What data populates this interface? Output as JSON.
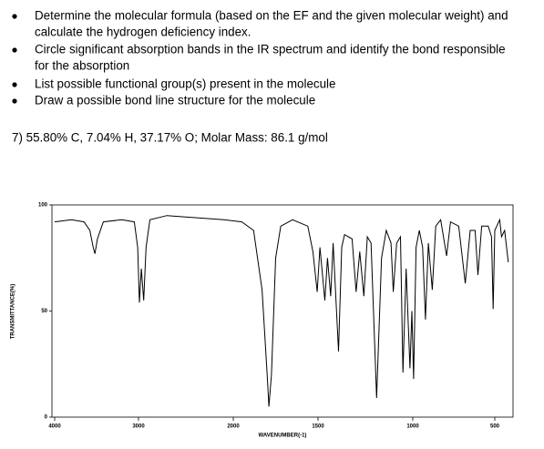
{
  "bullets": [
    [
      "Determine the molecular formula (based on the EF and the given molecular weight) and",
      "calculate the hydrogen deficiency index."
    ],
    [
      "Circle significant absorption bands in the IR spectrum and identify the bond responsible",
      "for the absorption"
    ],
    [
      "List possible functional group(s) present in the molecule"
    ],
    [
      "Draw a possible bond line structure for the molecule"
    ]
  ],
  "problem": "7)  55.80% C, 7.04% H, 37.17% O; Molar Mass: 86.1 g/mol",
  "chart_data": {
    "type": "line",
    "xlabel": "WAVENUMBER(-1)",
    "ylabel": "TRANSMITTANCE(%)",
    "xlim": [
      4000,
      418
    ],
    "ylim": [
      0,
      100
    ],
    "xticks": [
      4000,
      3000,
      2000,
      1500,
      1000,
      500
    ],
    "yticks": [
      0,
      50,
      100
    ],
    "color": "#000000",
    "x": [
      4000,
      3800,
      3650,
      3580,
      3540,
      3520,
      3490,
      3420,
      3200,
      3050,
      3010,
      2990,
      2970,
      2945,
      2920,
      2880,
      2700,
      2400,
      2100,
      1950,
      1880,
      1830,
      1800,
      1790,
      1775,
      1750,
      1720,
      1650,
      1560,
      1530,
      1505,
      1490,
      1464,
      1450,
      1433,
      1420,
      1392,
      1375,
      1360,
      1320,
      1299,
      1280,
      1258,
      1240,
      1220,
      1191,
      1165,
      1140,
      1115,
      1103,
      1085,
      1065,
      1052,
      1035,
      1015,
      1005,
      995,
      980,
      960,
      940,
      923,
      905,
      881,
      860,
      830,
      794,
      770,
      720,
      680,
      650,
      620,
      603,
      580,
      540,
      520,
      510,
      500,
      470,
      459,
      440,
      418
    ],
    "values": [
      92,
      93,
      92,
      88,
      80,
      77,
      84,
      92,
      93,
      92,
      80,
      54,
      70,
      55,
      80,
      93,
      95,
      94,
      93,
      92,
      88,
      60,
      20,
      5,
      20,
      75,
      90,
      93,
      90,
      78,
      59,
      80,
      55,
      75,
      57,
      82,
      31,
      80,
      86,
      84,
      59,
      78,
      57,
      85,
      82,
      9,
      75,
      88,
      82,
      59,
      82,
      85,
      21,
      70,
      23,
      50,
      18,
      80,
      88,
      80,
      46,
      82,
      60,
      90,
      93,
      76,
      92,
      90,
      63,
      88,
      88,
      67,
      90,
      90,
      85,
      51,
      88,
      93,
      85,
      88,
      73
    ]
  }
}
